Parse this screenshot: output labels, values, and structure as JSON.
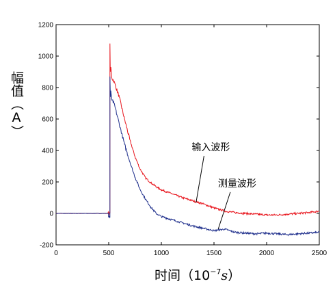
{
  "chart_data": {
    "type": "line",
    "title": "",
    "ylabel": "幅值（A）",
    "xlabel": {
      "prefix": "时间（",
      "base": "10",
      "exp": "−7",
      "unit": "s",
      "suffix": "）"
    },
    "xlim": [
      0,
      2500
    ],
    "ylim": [
      -200,
      1200
    ],
    "xticks": [
      0,
      500,
      1000,
      1500,
      2000,
      2500
    ],
    "yticks": [
      -200,
      0,
      200,
      400,
      600,
      800,
      1000,
      1200
    ],
    "grid": false,
    "series": [
      {
        "name": "输入波形",
        "color": "#e8141c",
        "x": [
          0,
          500,
          512,
          512,
          515,
          520,
          530,
          550,
          600,
          650,
          700,
          750,
          800,
          850,
          900,
          950,
          1000,
          1100,
          1200,
          1300,
          1400,
          1500,
          1600,
          1700,
          1800,
          1900,
          2000,
          2100,
          2200,
          2300,
          2400,
          2500
        ],
        "y": [
          0,
          0,
          0,
          1080,
          900,
          930,
          860,
          840,
          740,
          600,
          470,
          360,
          280,
          225,
          195,
          170,
          150,
          125,
          100,
          80,
          60,
          35,
          15,
          5,
          0,
          -5,
          -10,
          -10,
          -5,
          0,
          5,
          15
        ]
      },
      {
        "name": "测量波形",
        "color": "#1f2f8c",
        "x": [
          0,
          498,
          498,
          512,
          512,
          516,
          520,
          530,
          550,
          600,
          650,
          700,
          750,
          800,
          850,
          900,
          950,
          1000,
          1100,
          1200,
          1300,
          1400,
          1500,
          1600,
          1700,
          1800,
          1900,
          2000,
          2100,
          2200,
          2300,
          2400,
          2500
        ],
        "y": [
          0,
          0,
          -25,
          -25,
          870,
          740,
          780,
          720,
          700,
          570,
          440,
          330,
          230,
          150,
          90,
          40,
          0,
          -20,
          -40,
          -60,
          -80,
          -95,
          -110,
          -100,
          -120,
          -125,
          -130,
          -125,
          -130,
          -135,
          -130,
          -125,
          -120
        ]
      }
    ],
    "annotations": [
      {
        "text": "输入波形",
        "x": 1470,
        "y": 400,
        "arrow_to": [
          1330,
          70
        ]
      },
      {
        "text": "测量波形",
        "x": 1720,
        "y": 170,
        "arrow_to": [
          1540,
          -100
        ]
      }
    ]
  }
}
